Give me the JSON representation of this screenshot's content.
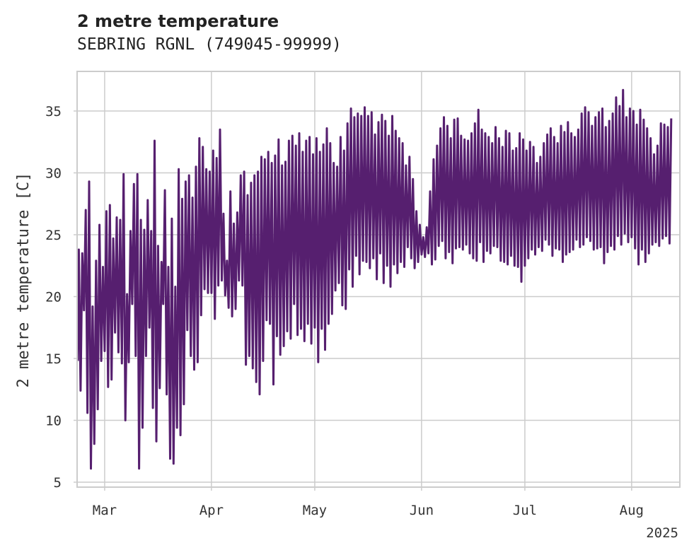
{
  "chart_data": {
    "type": "line",
    "title": "2 metre temperature",
    "subtitle": "SEBRING RGNL (749045-99999)",
    "xlabel": "",
    "ylabel": "2 metre temperature [C]",
    "x_range": [
      "2025-02-21",
      "2025-08-15"
    ],
    "ylim": [
      4.6,
      38.2
    ],
    "y_ticks": [
      5,
      10,
      15,
      20,
      25,
      30,
      35
    ],
    "x_ticks": [
      {
        "date": "2025-03-01",
        "label": "Mar"
      },
      {
        "date": "2025-04-01",
        "label": "Apr"
      },
      {
        "date": "2025-05-01",
        "label": "May"
      },
      {
        "date": "2025-06-01",
        "label": "Jun"
      },
      {
        "date": "2025-07-01",
        "label": "Jul"
      },
      {
        "date": "2025-08-01",
        "label": "Aug"
      }
    ],
    "x_offset_label": "2025",
    "grid": true,
    "line_color": "#561f6f",
    "series": [
      {
        "x": [
          "2025-02-21",
          "2025-02-22",
          "2025-02-23",
          "2025-02-24",
          "2025-02-25",
          "2025-02-26",
          "2025-02-27",
          "2025-02-28",
          "2025-03-01",
          "2025-03-02",
          "2025-03-03",
          "2025-03-04",
          "2025-03-05",
          "2025-03-06",
          "2025-03-07",
          "2025-03-08",
          "2025-03-09",
          "2025-03-10",
          "2025-03-11",
          "2025-03-12",
          "2025-03-13",
          "2025-03-14",
          "2025-03-15",
          "2025-03-16",
          "2025-03-17",
          "2025-03-18",
          "2025-03-19",
          "2025-03-20",
          "2025-03-21",
          "2025-03-22",
          "2025-03-23",
          "2025-03-24",
          "2025-03-25",
          "2025-03-26",
          "2025-03-27",
          "2025-03-28",
          "2025-03-29",
          "2025-03-30",
          "2025-03-31",
          "2025-04-01",
          "2025-04-02",
          "2025-04-03",
          "2025-04-04",
          "2025-04-05",
          "2025-04-06",
          "2025-04-07",
          "2025-04-08",
          "2025-04-09",
          "2025-04-10",
          "2025-04-11",
          "2025-04-12",
          "2025-04-13",
          "2025-04-14",
          "2025-04-15",
          "2025-04-16",
          "2025-04-17",
          "2025-04-18",
          "2025-04-19",
          "2025-04-20",
          "2025-04-21",
          "2025-04-22",
          "2025-04-23",
          "2025-04-24",
          "2025-04-25",
          "2025-04-26",
          "2025-04-27",
          "2025-04-28",
          "2025-04-29",
          "2025-04-30",
          "2025-05-01",
          "2025-05-02",
          "2025-05-03",
          "2025-05-04",
          "2025-05-05",
          "2025-05-06",
          "2025-05-07",
          "2025-05-08",
          "2025-05-09",
          "2025-05-10",
          "2025-05-11",
          "2025-05-12",
          "2025-05-13",
          "2025-05-14",
          "2025-05-15",
          "2025-05-16",
          "2025-05-17",
          "2025-05-18",
          "2025-05-19",
          "2025-05-20",
          "2025-05-21",
          "2025-05-22",
          "2025-05-23",
          "2025-05-24",
          "2025-05-25",
          "2025-05-26",
          "2025-05-27",
          "2025-05-28",
          "2025-05-29",
          "2025-05-30",
          "2025-05-31",
          "2025-06-01",
          "2025-06-02",
          "2025-06-03",
          "2025-06-04",
          "2025-06-05",
          "2025-06-06",
          "2025-06-07",
          "2025-06-08",
          "2025-06-09",
          "2025-06-10",
          "2025-06-11",
          "2025-06-12",
          "2025-06-13",
          "2025-06-14",
          "2025-06-15",
          "2025-06-16",
          "2025-06-17",
          "2025-06-18",
          "2025-06-19",
          "2025-06-20",
          "2025-06-21",
          "2025-06-22",
          "2025-06-23",
          "2025-06-24",
          "2025-06-25",
          "2025-06-26",
          "2025-06-27",
          "2025-06-28",
          "2025-06-29",
          "2025-06-30",
          "2025-07-01",
          "2025-07-02",
          "2025-07-03",
          "2025-07-04",
          "2025-07-05",
          "2025-07-06",
          "2025-07-07",
          "2025-07-08",
          "2025-07-09",
          "2025-07-10",
          "2025-07-11",
          "2025-07-12",
          "2025-07-13",
          "2025-07-14",
          "2025-07-15",
          "2025-07-16",
          "2025-07-17",
          "2025-07-18",
          "2025-07-19",
          "2025-07-20",
          "2025-07-21",
          "2025-07-22",
          "2025-07-23",
          "2025-07-24",
          "2025-07-25",
          "2025-07-26",
          "2025-07-27",
          "2025-07-28",
          "2025-07-29",
          "2025-07-30",
          "2025-07-31",
          "2025-08-01",
          "2025-08-02",
          "2025-08-03",
          "2025-08-04",
          "2025-08-05",
          "2025-08-06",
          "2025-08-07",
          "2025-08-08",
          "2025-08-09",
          "2025-08-10",
          "2025-08-11",
          "2025-08-12",
          "2025-08-13",
          "2025-08-14",
          "2025-08-15"
        ],
        "min": [
          14.8,
          12.4,
          18.9,
          10.6,
          6.1,
          8.1,
          10.9,
          14.8,
          15.6,
          12.7,
          13.3,
          17.1,
          15.5,
          14.6,
          10.0,
          14.7,
          19.4,
          15.2,
          6.1,
          9.4,
          15.2,
          17.5,
          11.0,
          8.3,
          12.6,
          19.4,
          12.1,
          6.9,
          6.5,
          9.4,
          8.8,
          11.3,
          17.3,
          15.2,
          14.1,
          14.7,
          18.5,
          20.6,
          20.3,
          20.3,
          18.2,
          20.9,
          21.3,
          20.1,
          19.1,
          18.4,
          19.0,
          21.3,
          20.9,
          14.5,
          15.2,
          14.2,
          13.1,
          12.1,
          14.8,
          18.1,
          17.8,
          12.9,
          16.8,
          15.3,
          16.0,
          17.2,
          16.6,
          19.4,
          16.9,
          17.4,
          16.4,
          17.8,
          16.2,
          17.5,
          14.7,
          17.4,
          15.7,
          17.8,
          18.6,
          20.5,
          21.1,
          19.3,
          19.0,
          22.2,
          20.8,
          23.3,
          21.8,
          22.9,
          22.8,
          22.3,
          23.1,
          21.4,
          23.5,
          21.1,
          22.5,
          20.8,
          22.6,
          21.9,
          22.8,
          22.4,
          24.0,
          23.1,
          22.3,
          22.8,
          23.4,
          23.2,
          23.5,
          22.6,
          23.0,
          24.1,
          24.5,
          23.1,
          23.6,
          22.7,
          23.9,
          24.0,
          23.8,
          24.2,
          23.5,
          23.1,
          22.9,
          24.4,
          22.8,
          23.7,
          23.5,
          24.1,
          24.0,
          22.9,
          22.8,
          22.6,
          23.3,
          22.5,
          22.4,
          21.2,
          22.5,
          23.1,
          23.8,
          23.4,
          24.0,
          23.7,
          24.6,
          24.2,
          23.3,
          23.9,
          23.8,
          22.8,
          23.4,
          23.6,
          23.8,
          24.6,
          24.0,
          24.2,
          24.8,
          24.5,
          23.8,
          23.9,
          24.0,
          22.7,
          23.6,
          24.1,
          23.8,
          24.9,
          24.2,
          25.1,
          24.4,
          24.8,
          23.9,
          22.6,
          23.8,
          22.8,
          23.5,
          24.2,
          24.4,
          24.1,
          24.7,
          24.9,
          24.3
        ],
        "max": [
          23.8,
          23.5,
          27.0,
          29.3,
          19.2,
          22.9,
          25.8,
          22.4,
          26.9,
          27.4,
          24.7,
          26.4,
          26.2,
          29.9,
          20.2,
          25.3,
          29.1,
          29.9,
          26.2,
          25.4,
          27.8,
          25.3,
          32.6,
          24.1,
          22.8,
          28.6,
          22.4,
          26.3,
          20.8,
          30.3,
          27.9,
          29.3,
          29.8,
          28.0,
          30.5,
          32.8,
          32.1,
          30.3,
          30.1,
          31.8,
          31.2,
          33.5,
          26.7,
          22.9,
          28.5,
          25.9,
          26.8,
          29.8,
          30.1,
          28.2,
          29.2,
          29.8,
          30.1,
          31.3,
          31.1,
          31.7,
          30.8,
          31.4,
          32.7,
          30.6,
          30.9,
          32.6,
          33.0,
          32.2,
          33.2,
          31.7,
          32.6,
          32.9,
          31.5,
          32.8,
          31.7,
          32.3,
          33.6,
          32.4,
          30.8,
          30.5,
          32.9,
          31.8,
          34.0,
          35.2,
          34.5,
          34.8,
          34.6,
          35.3,
          34.6,
          34.9,
          33.1,
          34.1,
          34.7,
          34.2,
          33.0,
          34.6,
          33.4,
          32.8,
          32.4,
          30.6,
          31.3,
          29.5,
          26.9,
          25.8,
          24.8,
          25.6,
          28.5,
          31.1,
          32.2,
          33.6,
          34.5,
          33.8,
          32.8,
          34.3,
          34.4,
          33.0,
          32.7,
          32.6,
          33.2,
          34.0,
          35.1,
          33.5,
          33.2,
          32.9,
          32.4,
          33.7,
          32.8,
          32.1,
          33.4,
          33.2,
          31.8,
          32.0,
          33.2,
          32.7,
          31.8,
          32.5,
          32.1,
          30.8,
          31.3,
          32.4,
          33.1,
          33.6,
          32.9,
          32.4,
          33.8,
          33.3,
          34.1,
          33.2,
          32.9,
          33.5,
          34.8,
          35.3,
          34.9,
          33.8,
          34.5,
          34.9,
          35.2,
          33.7,
          34.2,
          34.8,
          36.1,
          35.4,
          36.7,
          34.5,
          35.2,
          35.0,
          33.9,
          35.1,
          34.3,
          33.6,
          32.8,
          31.5,
          32.2,
          34.0,
          33.9,
          33.7,
          34.4,
          33.8,
          33.5
        ]
      }
    ]
  }
}
